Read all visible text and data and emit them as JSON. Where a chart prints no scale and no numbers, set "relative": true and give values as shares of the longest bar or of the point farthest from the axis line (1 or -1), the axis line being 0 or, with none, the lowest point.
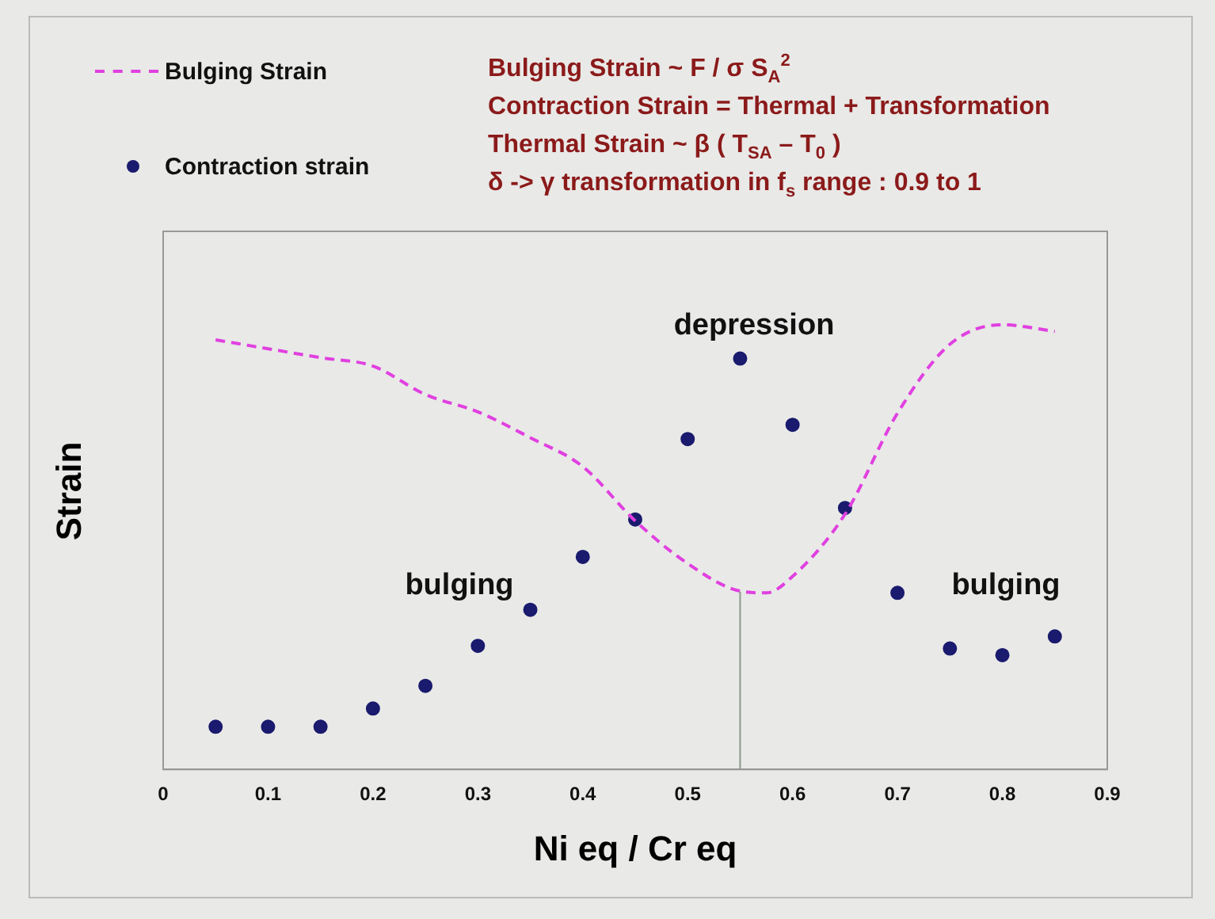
{
  "chart_data": {
    "type": "scatter",
    "relative": true,
    "xlabel": "Ni eq / Cr eq",
    "ylabel": "Strain",
    "xlim": [
      0,
      0.9
    ],
    "xticks": [
      0,
      0.1,
      0.2,
      0.3,
      0.4,
      0.5,
      0.6,
      0.7,
      0.8,
      0.9
    ],
    "legend": "top left",
    "grid": false,
    "series": [
      {
        "name": "Bulging Strain",
        "type": "line",
        "line_style": "dashed",
        "marker": "none",
        "color": "#e040e0",
        "x": [
          0.05,
          0.1,
          0.15,
          0.2,
          0.25,
          0.3,
          0.35,
          0.4,
          0.45,
          0.5,
          0.55,
          0.575,
          0.6,
          0.65,
          0.7,
          0.75,
          0.8,
          0.85
        ],
        "values": [
          0.966,
          0.946,
          0.926,
          0.907,
          0.843,
          0.804,
          0.746,
          0.681,
          0.559,
          0.463,
          0.401,
          0.397,
          0.434,
          0.574,
          0.801,
          0.956,
          1,
          0.985
        ]
      },
      {
        "name": "Contraction strain",
        "type": "scatter",
        "marker": "circle",
        "color": "#1a1a6e",
        "x": [
          0.05,
          0.1,
          0.15,
          0.2,
          0.25,
          0.3,
          0.35,
          0.4,
          0.45,
          0.5,
          0.55,
          0.6,
          0.65,
          0.7,
          0.75,
          0.8,
          0.85
        ],
        "values": [
          0.096,
          0.096,
          0.096,
          0.137,
          0.188,
          0.278,
          0.359,
          0.478,
          0.562,
          0.743,
          0.924,
          0.775,
          0.588,
          0.397,
          0.272,
          0.257,
          0.299
        ]
      }
    ],
    "ref_lines": [
      {
        "axis": "x",
        "value": 0.55,
        "color": "#8a9a8a"
      }
    ],
    "annotations": [
      "Bulging Strain  ~  F / σ S$_{A}$$^{2}$",
      "Contraction Strain  =  Thermal + Transformation",
      "Thermal Strain  ~  β ( T$_{SA}$ – T$_{0}$ )",
      "δ -> γ  transformation in f$_{s}$ range  :  0.9  to 1",
      "depression",
      "bulging",
      "bulging"
    ]
  }
}
